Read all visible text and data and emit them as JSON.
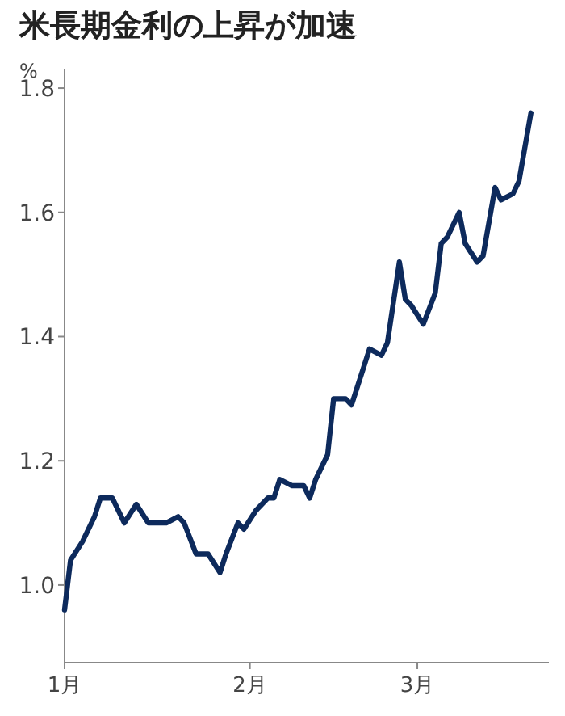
{
  "chart_data": {
    "type": "line",
    "title": "米長期金利の上昇が加速",
    "ylabel": "%",
    "x": [
      "--01-01",
      "--01-02",
      "--01-04",
      "--01-06",
      "--01-07",
      "--01-09",
      "--01-11",
      "--01-13",
      "--01-15",
      "--01-17",
      "--01-18",
      "--01-20",
      "--01-21",
      "--01-23",
      "--01-25",
      "--01-27",
      "--01-28",
      "--01-30",
      "--01-31",
      "--02-02",
      "--02-04",
      "--02-05",
      "--02-06",
      "--02-08",
      "--02-10",
      "--02-11",
      "--02-12",
      "--02-14",
      "--02-15",
      "--02-17",
      "--02-18",
      "--02-20",
      "--02-21",
      "--02-23",
      "--02-24",
      "--02-26",
      "--02-27",
      "--02-28",
      "--03-02",
      "--03-04",
      "--03-05",
      "--03-06",
      "--03-08",
      "--03-09",
      "--03-11",
      "--03-12",
      "--03-14",
      "--03-15",
      "--03-17",
      "--03-18",
      "--03-20"
    ],
    "series": [
      {
        "color": "#0d2a5c",
        "values": [
          0.96,
          1.04,
          1.07,
          1.11,
          1.14,
          1.14,
          1.1,
          1.13,
          1.1,
          1.1,
          1.1,
          1.11,
          1.1,
          1.05,
          1.05,
          1.02,
          1.05,
          1.1,
          1.09,
          1.12,
          1.14,
          1.14,
          1.17,
          1.16,
          1.16,
          1.14,
          1.17,
          1.21,
          1.3,
          1.3,
          1.29,
          1.35,
          1.38,
          1.37,
          1.39,
          1.52,
          1.46,
          1.45,
          1.42,
          1.47,
          1.55,
          1.56,
          1.6,
          1.55,
          1.52,
          1.53,
          1.64,
          1.62,
          1.63,
          1.65,
          1.76
        ]
      }
    ],
    "xlim": [
      "--01-01",
      "--03-23"
    ],
    "xticks": [
      {
        "value": "--01-01",
        "label": "1月"
      },
      {
        "value": "--02-01",
        "label": "2月"
      },
      {
        "value": "--03-01",
        "label": "3月"
      }
    ],
    "ylim": [
      0.875,
      1.83
    ],
    "yticks": [
      {
        "value": 1.0,
        "label": "1.0"
      },
      {
        "value": 1.2,
        "label": "1.2"
      },
      {
        "value": 1.4,
        "label": "1.4"
      },
      {
        "value": 1.6,
        "label": "1.6"
      },
      {
        "value": 1.8,
        "label": "1.8"
      }
    ]
  }
}
